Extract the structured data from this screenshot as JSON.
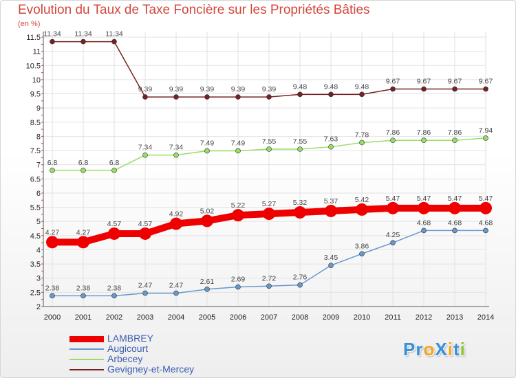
{
  "title": "Evolution du Taux de Taxe Foncière sur les Propriétés Bâties",
  "unit_label": "(en %)",
  "logo": {
    "text": "ProXiti",
    "letters": [
      "P",
      "r",
      "o",
      "X",
      "i",
      "t",
      "i"
    ],
    "colors": [
      "#3a8fd8",
      "#3a8fd8",
      "#f2a51a",
      "#3a8fd8",
      "#f2a51a",
      "#3a8fd8",
      "#8cc43c"
    ]
  },
  "chart_data": {
    "type": "line",
    "x": [
      "2000",
      "2001",
      "2002",
      "2003",
      "2004",
      "2005",
      "2006",
      "2007",
      "2008",
      "2009",
      "2010",
      "2011",
      "2012",
      "2013",
      "2014"
    ],
    "ylim": [
      2,
      11.5
    ],
    "yticks": [
      "2",
      "2.5",
      "3",
      "3.5",
      "4",
      "4.5",
      "5",
      "5.5",
      "6",
      "6.5",
      "7",
      "7.5",
      "8",
      "8.5",
      "9",
      "9.5",
      "10",
      "10.5",
      "11",
      "11.5"
    ],
    "grid": true,
    "legend_position": "bottom-left",
    "series": [
      {
        "name": "LAMBREY",
        "color": "#ee0000",
        "width": 10,
        "marker": 9,
        "values": [
          4.27,
          4.27,
          4.57,
          4.57,
          4.92,
          5.02,
          5.22,
          5.27,
          5.32,
          5.37,
          5.42,
          5.47,
          5.47,
          5.47,
          5.47
        ],
        "labels": [
          "4.27",
          "4.27",
          "4.57",
          "4.57",
          "4.92",
          "5.02",
          "5.22",
          "5.27",
          "5.32",
          "5.37",
          "5.42",
          "5.47",
          "5.47",
          "5.47",
          "5.47"
        ]
      },
      {
        "name": "Augicourt",
        "color": "#6699cc",
        "width": 1.5,
        "marker": 3.5,
        "values": [
          2.38,
          2.38,
          2.38,
          2.47,
          2.47,
          2.61,
          2.69,
          2.72,
          2.76,
          3.45,
          3.86,
          4.25,
          4.68,
          4.68,
          4.68
        ],
        "labels": [
          "2.38",
          "2.38",
          "2.38",
          "2.47",
          "2.47",
          "2.61",
          "2.69",
          "2.72",
          "2.76",
          "3.45",
          "3.86",
          "4.25",
          "4.68",
          "4.68",
          "4.68"
        ]
      },
      {
        "name": "Arbecey",
        "color": "#99dd66",
        "width": 1.5,
        "marker": 3.5,
        "values": [
          6.8,
          6.8,
          6.8,
          7.34,
          7.34,
          7.49,
          7.49,
          7.55,
          7.55,
          7.63,
          7.78,
          7.86,
          7.86,
          7.86,
          7.94
        ],
        "labels": [
          "6.8",
          "6.8",
          "6.8",
          "7.34",
          "7.34",
          "7.49",
          "7.49",
          "7.55",
          "7.55",
          "7.63",
          "7.78",
          "7.86",
          "7.86",
          "7.86",
          "7.94"
        ]
      },
      {
        "name": "Gevigney-et-Mercey",
        "color": "#772222",
        "width": 1.5,
        "marker": 3.5,
        "values": [
          11.34,
          11.34,
          11.34,
          9.39,
          9.39,
          9.39,
          9.39,
          9.39,
          9.48,
          9.48,
          9.48,
          9.67,
          9.67,
          9.67,
          9.67
        ],
        "labels": [
          "11.34",
          "11.34",
          "11.34",
          "9.39",
          "9.39",
          "9.39",
          "9.39",
          "9.39",
          "9.48",
          "9.48",
          "9.48",
          "9.67",
          "9.67",
          "9.67",
          "9.67"
        ]
      }
    ]
  }
}
